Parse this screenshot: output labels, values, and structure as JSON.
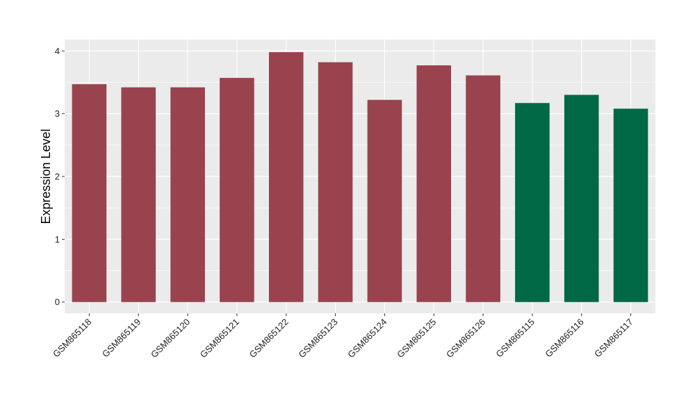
{
  "chart_data": {
    "type": "bar",
    "xlabel": "",
    "ylabel": "Expression Level",
    "ylim": [
      -0.18,
      4.18
    ],
    "yticks": [
      0,
      1,
      2,
      3,
      4
    ],
    "grid": true,
    "categories": [
      "GSM865118",
      "GSM865119",
      "GSM865120",
      "GSM865121",
      "GSM865122",
      "GSM865123",
      "GSM865124",
      "GSM865125",
      "GSM865126",
      "GSM865115",
      "GSM865116",
      "GSM865117"
    ],
    "values": [
      3.47,
      3.42,
      3.42,
      3.57,
      3.98,
      3.82,
      3.22,
      3.77,
      3.61,
      3.17,
      3.3,
      3.08
    ],
    "bar_colors": [
      "#99434f",
      "#99434f",
      "#99434f",
      "#99434f",
      "#99434f",
      "#99434f",
      "#99434f",
      "#99434f",
      "#99434f",
      "#006845",
      "#006845",
      "#006845"
    ],
    "panel_color": "#ebebeb",
    "grid_color": "#ffffff"
  }
}
